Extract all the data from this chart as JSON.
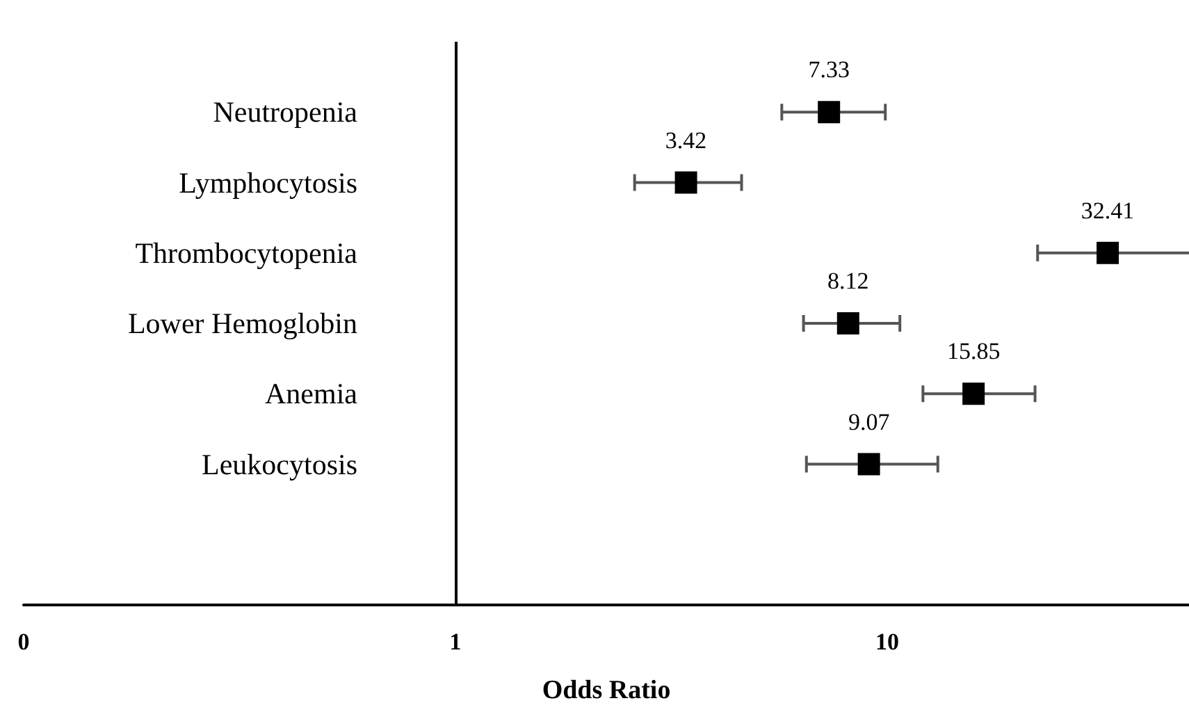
{
  "chart_data": {
    "type": "scatter",
    "xlabel": "Odds Ratio",
    "categories": [
      "Neutropenia",
      "Lymphocytosis",
      "Thrombocytopenia",
      "Lower Hemoglobin",
      "Anemia",
      "Leukocytosis"
    ],
    "orientation": "horizontal",
    "values": [
      7.33,
      3.42,
      32.41,
      8.12,
      15.85,
      9.07
    ],
    "errors": [
      [
        5.7,
        9.9
      ],
      [
        2.6,
        4.6
      ],
      [
        22.3,
        50
      ],
      [
        6.4,
        10.7
      ],
      [
        12.1,
        22
      ],
      [
        6.5,
        13.1
      ]
    ],
    "color": "#000000",
    "marker": "square",
    "data_labels": true,
    "log": "x",
    "xlim": [
      0.1,
      50
    ],
    "xticks": [
      {
        "value": 0.1,
        "label": "0"
      },
      1,
      10
    ],
    "ref_lines": [
      {
        "axis": "x",
        "value": 1,
        "color": "#000000"
      }
    ]
  }
}
